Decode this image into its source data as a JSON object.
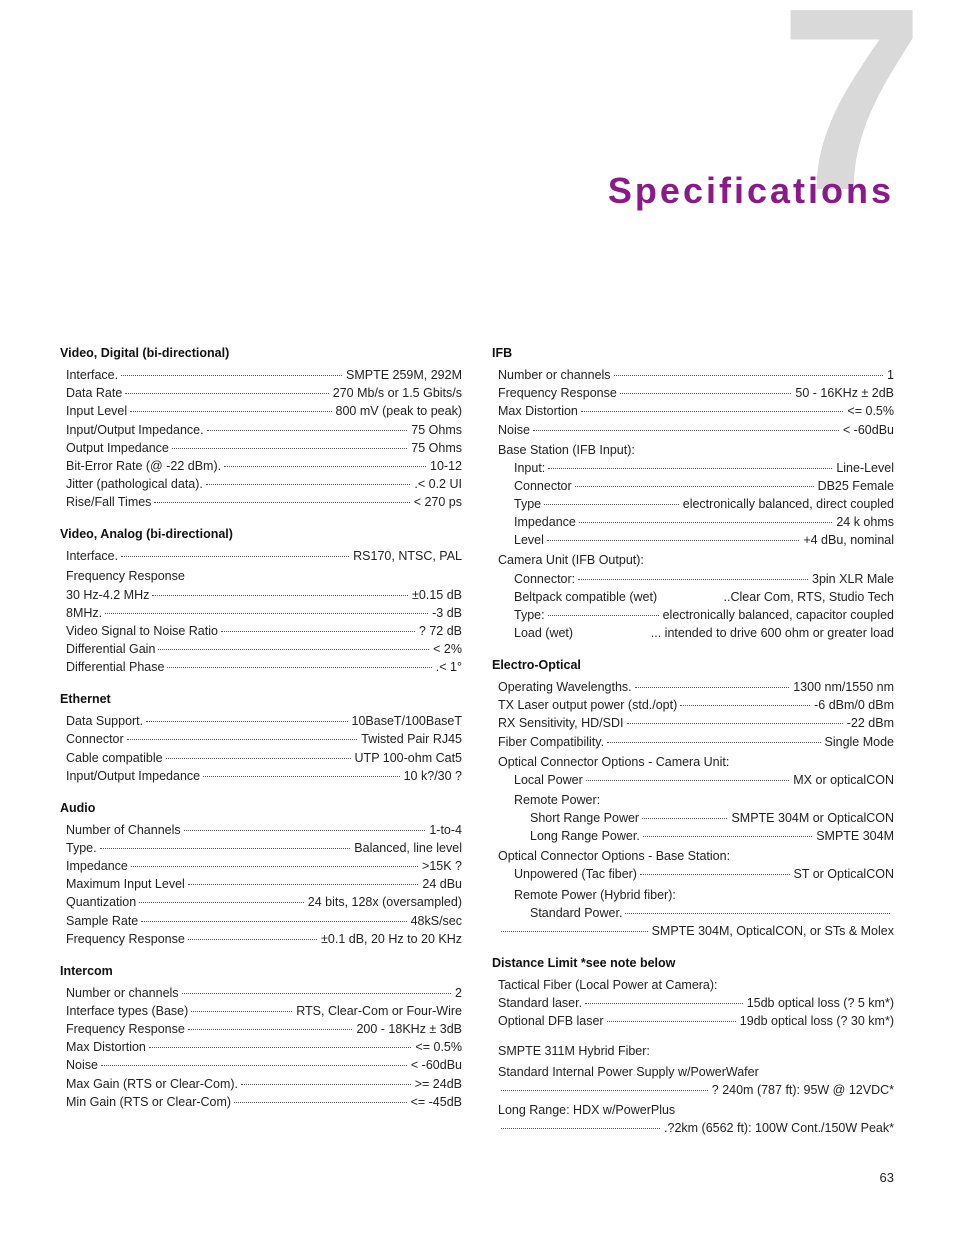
{
  "chapter_number": "7",
  "chapter_title": "Specifications",
  "page_number": "63",
  "colors": {
    "title": "#8a1a8a",
    "big7": "#d9d9d9",
    "text": "#222222",
    "dot": "#555555"
  },
  "left": [
    {
      "type": "heading",
      "text": "Video, Digital (bi-directional)"
    },
    {
      "type": "spec",
      "label": "Interface.",
      "value": "SMPTE 259M, 292M"
    },
    {
      "type": "spec",
      "label": "Data Rate",
      "value": "270 Mb/s or 1.5 Gbits/s"
    },
    {
      "type": "spec",
      "label": "Input Level",
      "value": "800 mV (peak to peak)"
    },
    {
      "type": "spec",
      "label": "Input/Output Impedance.",
      "value": "75 Ohms"
    },
    {
      "type": "spec",
      "label": "Output Impedance",
      "value": "75 Ohms"
    },
    {
      "type": "spec",
      "label": "Bit-Error Rate (@ -22 dBm).",
      "value": "10-12"
    },
    {
      "type": "spec",
      "label": "Jitter (pathological data).",
      "value": ".< 0.2 UI"
    },
    {
      "type": "spec",
      "label": "Rise/Fall Times",
      "value": "< 270 ps"
    },
    {
      "type": "heading",
      "text": "Video, Analog (bi-directional)"
    },
    {
      "type": "spec",
      "label": "Interface.",
      "value": "RS170, NTSC, PAL"
    },
    {
      "type": "label",
      "text": "Frequency Response"
    },
    {
      "type": "spec",
      "label": "30 Hz-4.2 MHz",
      "value": "±0.15 dB"
    },
    {
      "type": "spec",
      "label": "8MHz.",
      "value": "-3 dB"
    },
    {
      "type": "spec",
      "label": "Video Signal to Noise Ratio",
      "value": "? 72 dB"
    },
    {
      "type": "spec",
      "label": "Differential Gain",
      "value": "< 2%"
    },
    {
      "type": "spec",
      "label": "Differential Phase",
      "value": ".< 1°"
    },
    {
      "type": "heading",
      "text": "Ethernet"
    },
    {
      "type": "spec",
      "label": "Data Support.",
      "value": "10BaseT/100BaseT"
    },
    {
      "type": "spec",
      "label": "Connector",
      "value": "Twisted Pair RJ45"
    },
    {
      "type": "spec",
      "label": "Cable compatible",
      "value": "UTP 100-ohm Cat5"
    },
    {
      "type": "spec",
      "label": "Input/Output Impedance",
      "value": "10 k?/30 ?"
    },
    {
      "type": "heading",
      "text": "Audio"
    },
    {
      "type": "spec",
      "label": "Number of Channels",
      "value": "1-to-4"
    },
    {
      "type": "spec",
      "label": "Type.",
      "value": "Balanced, line level"
    },
    {
      "type": "spec",
      "label": "Impedance",
      "value": ">15K ?"
    },
    {
      "type": "spec",
      "label": "Maximum Input Level",
      "value": "24 dBu"
    },
    {
      "type": "spec",
      "label": "Quantization",
      "value": "24 bits, 128x (oversampled)"
    },
    {
      "type": "spec",
      "label": "Sample Rate",
      "value": "48kS/sec"
    },
    {
      "type": "spec",
      "label": "Frequency Response ",
      "value": " ±0.1 dB, 20 Hz to 20 KHz"
    },
    {
      "type": "heading",
      "text": "Intercom"
    },
    {
      "type": "spec",
      "label": "Number or channels",
      "value": "2"
    },
    {
      "type": "spec",
      "label": "Interface types (Base)",
      "value": " RTS, Clear-Com or Four-Wire"
    },
    {
      "type": "spec",
      "label": "Frequency Response",
      "value": "200 - 18KHz ± 3dB"
    },
    {
      "type": "spec",
      "label": "Max Distortion",
      "value": "<= 0.5%"
    },
    {
      "type": "spec",
      "label": "Noise",
      "value": "< -60dBu"
    },
    {
      "type": "spec",
      "label": "Max Gain (RTS or Clear-Com).",
      "value": ">= 24dB"
    },
    {
      "type": "spec",
      "label": "Min Gain (RTS or Clear-Com)",
      "value": "<= -45dB"
    }
  ],
  "right": [
    {
      "type": "heading",
      "text": "IFB"
    },
    {
      "type": "spec",
      "label": "Number or channels",
      "value": "1"
    },
    {
      "type": "spec",
      "label": "Frequency Response",
      "value": "50 - 16KHz ± 2dB"
    },
    {
      "type": "spec",
      "label": "Max Distortion",
      "value": "<= 0.5%"
    },
    {
      "type": "spec",
      "label": "Noise",
      "value": "< -60dBu"
    },
    {
      "type": "label",
      "text": "Base Station (IFB Input):"
    },
    {
      "type": "spec",
      "indent": 1,
      "label": "Input:",
      "value": "Line-Level"
    },
    {
      "type": "spec",
      "indent": 1,
      "label": "Connector",
      "value": "DB25 Female"
    },
    {
      "type": "spec",
      "indent": 1,
      "label": "Type",
      "value": "electronically balanced, direct coupled"
    },
    {
      "type": "spec",
      "indent": 1,
      "label": "Impedance",
      "value": "24 k ohms"
    },
    {
      "type": "spec",
      "indent": 1,
      "label": "Level",
      "value": "+4 dBu, nominal"
    },
    {
      "type": "label",
      "text": "Camera Unit (IFB Output):"
    },
    {
      "type": "spec",
      "indent": 1,
      "label": "Connector: ",
      "value": "3pin XLR Male"
    },
    {
      "type": "spec",
      "indent": 1,
      "nodots": true,
      "label": "Beltpack compatible (wet)",
      "value": "..Clear Com, RTS, Studio Tech"
    },
    {
      "type": "spec",
      "indent": 1,
      "label": "Type: ",
      "value": "electronically balanced, capacitor coupled"
    },
    {
      "type": "spec",
      "indent": 1,
      "nodots": true,
      "label": "Load (wet)",
      "value": " ... intended to drive 600 ohm or greater load"
    },
    {
      "type": "heading",
      "text": "Electro-Optical"
    },
    {
      "type": "spec",
      "label": "Operating Wavelengths.",
      "value": "1300 nm/1550 nm"
    },
    {
      "type": "spec",
      "label": "TX Laser output power (std./opt)",
      "value": "-6 dBm/0 dBm"
    },
    {
      "type": "spec",
      "label": "RX Sensitivity, HD/SDI",
      "value": "-22 dBm"
    },
    {
      "type": "spec",
      "label": "Fiber Compatibility.",
      "value": "Single Mode"
    },
    {
      "type": "label",
      "text": "Optical Connector Options - Camera Unit:"
    },
    {
      "type": "spec",
      "indent": 1,
      "label": "Local Power",
      "value": "MX or opticalCON"
    },
    {
      "type": "label",
      "indent": 1,
      "text": "Remote Power:"
    },
    {
      "type": "spec",
      "indent": 2,
      "label": "Short Range Power",
      "value": "SMPTE 304M  or  OpticalCON"
    },
    {
      "type": "spec",
      "indent": 2,
      "label": "Long Range Power.",
      "value": "SMPTE 304M"
    },
    {
      "type": "label",
      "text": "Optical Connector Options - Base Station:"
    },
    {
      "type": "spec",
      "indent": 1,
      "label": "Unpowered (Tac fiber)",
      "value": "ST or OpticalCON"
    },
    {
      "type": "label",
      "indent": 1,
      "text": "Remote Power (Hybrid fiber):"
    },
    {
      "type": "spec",
      "indent": 2,
      "label": "Standard Power.",
      "value": ""
    },
    {
      "type": "spec",
      "indent": 0,
      "label": "",
      "value": "SMPTE 304M, OpticalCON, or STs & Molex"
    },
    {
      "type": "heading",
      "text": "Distance Limit *see note below"
    },
    {
      "type": "label",
      "indent": 0,
      "text": "Tactical Fiber (Local Power at Camera):"
    },
    {
      "type": "spec",
      "indent": 0,
      "label": "Standard laser.",
      "value": "15db optical loss (? 5 km*)"
    },
    {
      "type": "spec",
      "indent": 0,
      "label": "Optional DFB laser",
      "value": "19db optical loss (? 30 km*)"
    },
    {
      "type": "gap"
    },
    {
      "type": "label",
      "text": "SMPTE 311M Hybrid Fiber:"
    },
    {
      "type": "label",
      "text": "Standard Internal Power Supply w/PowerWafer"
    },
    {
      "type": "spec",
      "label": "",
      "value": " ? 240m (787 ft): 95W @ 12VDC*"
    },
    {
      "type": "label",
      "text": "Long Range: HDX w/PowerPlus"
    },
    {
      "type": "spec",
      "label": "",
      "value": ".?2km (6562 ft): 100W Cont./150W Peak*"
    }
  ]
}
